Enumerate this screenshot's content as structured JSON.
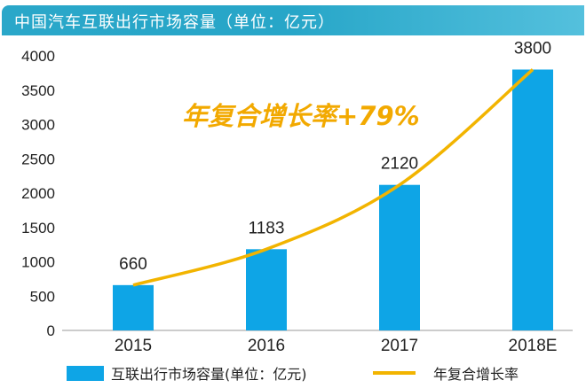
{
  "header": {
    "title": "中国汽车互联出行市场容量（单位：亿元）"
  },
  "chart_data": {
    "type": "bar",
    "title": "中国汽车互联出行市场容量（单位：亿元）",
    "categories": [
      "2015",
      "2016",
      "2017",
      "2018E"
    ],
    "series": [
      {
        "name": "互联出行市场容量(单位：亿元)",
        "type": "bar",
        "values": [
          660,
          1183,
          2120,
          3800
        ],
        "color": "#0ea5e6"
      },
      {
        "name": "年复合增长率",
        "type": "line",
        "values": [
          660,
          1183,
          2120,
          3800
        ],
        "color": "#f2b400"
      }
    ],
    "data_labels": [
      "660",
      "1183",
      "2120",
      "3800"
    ],
    "annotation": "年复合增长率+79%",
    "ylim": [
      0,
      4000
    ],
    "yticks": [
      0,
      500,
      1000,
      1500,
      2000,
      2500,
      3000,
      3500,
      4000
    ],
    "grid": false,
    "legend_placement": "bottom"
  }
}
